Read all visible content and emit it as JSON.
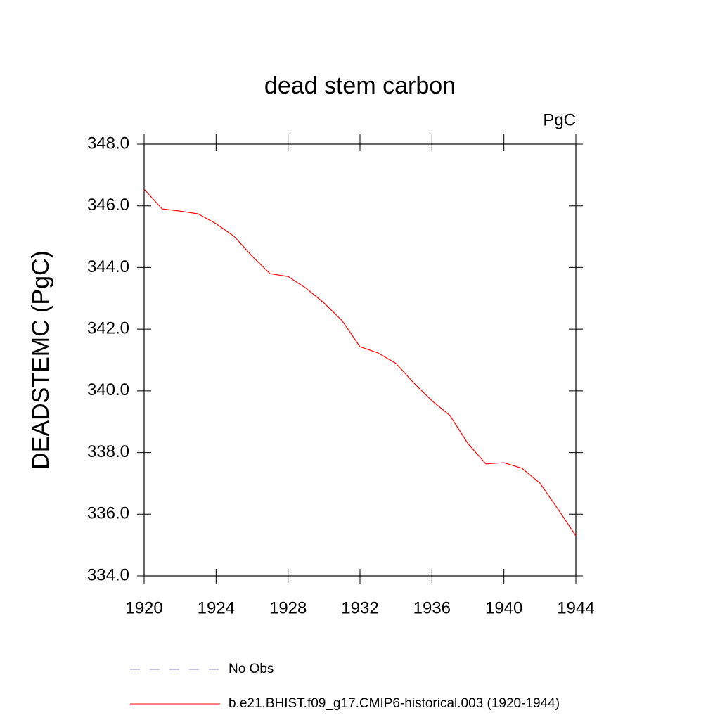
{
  "chart_data": {
    "type": "line",
    "title": "dead stem carbon",
    "units": "PgC",
    "ylabel": "DEADSTEMC  (PgC)",
    "x": [
      1920,
      1921,
      1922,
      1923,
      1924,
      1925,
      1926,
      1927,
      1928,
      1929,
      1930,
      1931,
      1932,
      1933,
      1934,
      1935,
      1936,
      1937,
      1938,
      1939,
      1940,
      1941,
      1942,
      1943,
      1944
    ],
    "series": [
      {
        "name": "b.e21.BHIST.f09_g17.CMIP6-historical.003 (1920-1944)",
        "color": "#ff0000",
        "values": [
          346.54,
          345.9,
          345.83,
          345.74,
          345.42,
          345.01,
          344.37,
          343.8,
          343.71,
          343.33,
          342.85,
          342.28,
          341.43,
          341.23,
          340.89,
          340.25,
          339.68,
          339.2,
          338.29,
          337.63,
          337.67,
          337.49,
          337.01,
          336.17,
          335.3
        ]
      }
    ],
    "extra_legend": [
      {
        "name": "No Obs",
        "color": "#8080c0",
        "style": "dashed"
      }
    ],
    "xlim": [
      1920,
      1944
    ],
    "xticks": [
      1920,
      1924,
      1928,
      1932,
      1936,
      1940,
      1944
    ],
    "ylim": [
      334,
      348
    ],
    "yticks": [
      {
        "value": 334,
        "label": "334.0"
      },
      {
        "value": 336,
        "label": "336.0"
      },
      {
        "value": 338,
        "label": "338.0"
      },
      {
        "value": 340,
        "label": "340.0"
      },
      {
        "value": 342,
        "label": "342.0"
      },
      {
        "value": 344,
        "label": "344.0"
      },
      {
        "value": 346,
        "label": "346.0"
      },
      {
        "value": 348,
        "label": "348.0"
      }
    ]
  }
}
